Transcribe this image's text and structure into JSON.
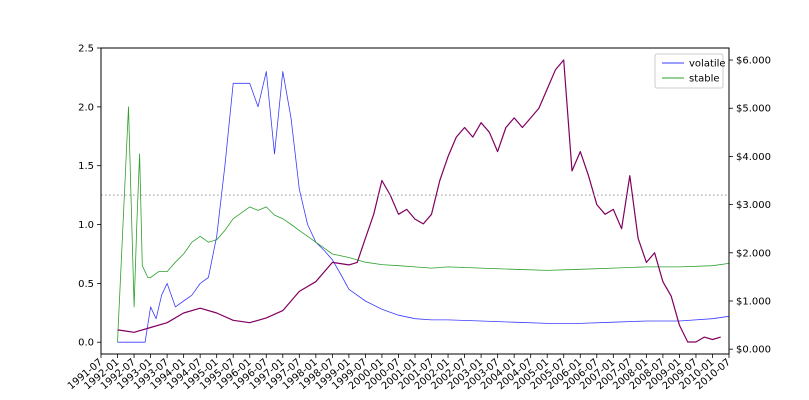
{
  "chart_data": {
    "type": "line",
    "title": "",
    "xlabel": "",
    "ylabel": "",
    "ylabel_right": "",
    "xlim": [
      "1991-07",
      "2010-07"
    ],
    "ylim": [
      -0.1,
      2.5
    ],
    "ylim_right": [
      -0.1,
      6.25
    ],
    "x_ticks": [
      "1991-07",
      "1992-01",
      "1992-07",
      "1993-01",
      "1993-07",
      "1994-01",
      "1994-07",
      "1995-01",
      "1995-07",
      "1996-01",
      "1996-07",
      "1997-01",
      "1997-07",
      "1998-01",
      "1998-07",
      "1999-01",
      "1999-07",
      "2000-01",
      "2000-07",
      "2001-01",
      "2001-07",
      "2002-01",
      "2002-07",
      "2003-01",
      "2003-07",
      "2004-01",
      "2004-07",
      "2005-01",
      "2005-07",
      "2006-01",
      "2006-07",
      "2007-01",
      "2007-07",
      "2008-01",
      "2008-07",
      "2009-01",
      "2009-07",
      "2010-01",
      "2010-07"
    ],
    "y_ticks_left": [
      "0.0",
      "0.5",
      "1.0",
      "1.5",
      "2.0",
      "2.5"
    ],
    "y_ticks_right": [
      "$0.000",
      "$1.000",
      "$2.000",
      "$3.000",
      "$4.000",
      "$5.000",
      "$6.000"
    ],
    "y_ticks_left_values": [
      0,
      0.5,
      1.0,
      1.5,
      2.0,
      2.5
    ],
    "y_ticks_right_values": [
      0,
      1,
      2,
      3,
      4,
      5,
      6
    ],
    "reference_line": {
      "axis": "left",
      "y": 1.25,
      "style": "dotted",
      "color": "#999999"
    },
    "grid": false,
    "legend_position": "top-right",
    "series": [
      {
        "name": "volatile",
        "axis": "left",
        "color": "#3b3bff",
        "x": [
          "1992-01",
          "1992-07",
          "1992-09",
          "1992-10",
          "1992-11",
          "1993-01",
          "1993-03",
          "1993-05",
          "1993-07",
          "1993-10",
          "1994-01",
          "1994-04",
          "1994-07",
          "1994-10",
          "1995-01",
          "1995-04",
          "1995-07",
          "1995-10",
          "1996-01",
          "1996-04",
          "1996-07",
          "1996-10",
          "1997-01",
          "1997-04",
          "1997-07",
          "1997-10",
          "1998-01",
          "1998-04",
          "1998-07",
          "1998-10",
          "1999-01",
          "1999-07",
          "2000-01",
          "2000-07",
          "2001-01",
          "2001-07",
          "2002-01",
          "2003-01",
          "2004-01",
          "2005-01",
          "2006-01",
          "2007-01",
          "2008-01",
          "2009-01",
          "2010-01",
          "2010-07"
        ],
        "values": [
          0.0,
          0.0,
          0.0,
          0.0,
          0.0,
          0.3,
          0.2,
          0.4,
          0.5,
          0.3,
          0.35,
          0.4,
          0.5,
          0.55,
          0.9,
          1.5,
          2.2,
          2.2,
          2.2,
          2.0,
          2.3,
          1.6,
          2.3,
          1.9,
          1.3,
          1.0,
          0.85,
          0.78,
          0.7,
          0.58,
          0.45,
          0.35,
          0.28,
          0.23,
          0.2,
          0.19,
          0.19,
          0.18,
          0.17,
          0.16,
          0.16,
          0.17,
          0.18,
          0.18,
          0.2,
          0.22
        ]
      },
      {
        "name": "stable",
        "axis": "left",
        "color": "#2ca02c",
        "x": [
          "1992-01",
          "1992-03",
          "1992-05",
          "1992-07",
          "1992-08",
          "1992-09",
          "1992-10",
          "1992-11",
          "1992-12",
          "1993-01",
          "1993-04",
          "1993-07",
          "1993-10",
          "1994-01",
          "1994-04",
          "1994-07",
          "1994-10",
          "1995-01",
          "1995-04",
          "1995-07",
          "1995-10",
          "1996-01",
          "1996-04",
          "1996-07",
          "1996-10",
          "1997-01",
          "1997-04",
          "1997-07",
          "1997-10",
          "1998-01",
          "1998-04",
          "1998-07",
          "1999-01",
          "1999-07",
          "2000-01",
          "2000-07",
          "2001-01",
          "2001-07",
          "2002-01",
          "2003-01",
          "2004-01",
          "2005-01",
          "2006-01",
          "2007-01",
          "2008-01",
          "2009-01",
          "2010-01",
          "2010-07"
        ],
        "values": [
          0.0,
          1.0,
          2.0,
          0.3,
          1.0,
          1.6,
          0.65,
          0.6,
          0.55,
          0.55,
          0.6,
          0.6,
          0.68,
          0.75,
          0.85,
          0.9,
          0.85,
          0.87,
          0.95,
          1.05,
          1.1,
          1.15,
          1.12,
          1.15,
          1.08,
          1.05,
          1.0,
          0.95,
          0.9,
          0.85,
          0.8,
          0.75,
          0.72,
          0.68,
          0.66,
          0.65,
          0.64,
          0.63,
          0.64,
          0.63,
          0.62,
          0.61,
          0.62,
          0.63,
          0.64,
          0.64,
          0.65,
          0.67
        ]
      },
      {
        "name": "",
        "axis": "right",
        "color": "#800060",
        "x": [
          "1992-01",
          "1992-07",
          "1993-01",
          "1993-07",
          "1994-01",
          "1994-07",
          "1995-01",
          "1995-07",
          "1996-01",
          "1996-07",
          "1997-01",
          "1997-07",
          "1998-01",
          "1998-07",
          "1999-01",
          "1999-04",
          "1999-07",
          "1999-10",
          "2000-01",
          "2000-04",
          "2000-07",
          "2000-10",
          "2001-01",
          "2001-04",
          "2001-07",
          "2001-10",
          "2002-01",
          "2002-04",
          "2002-07",
          "2002-10",
          "2003-01",
          "2003-04",
          "2003-07",
          "2003-10",
          "2004-01",
          "2004-04",
          "2004-07",
          "2004-10",
          "2005-01",
          "2005-04",
          "2005-07",
          "2005-10",
          "2006-01",
          "2006-04",
          "2006-07",
          "2006-10",
          "2007-01",
          "2007-04",
          "2007-07",
          "2007-10",
          "2008-01",
          "2008-04",
          "2008-07",
          "2008-10",
          "2009-01",
          "2009-04",
          "2009-07",
          "2009-10",
          "2010-01",
          "2010-04"
        ],
        "values": [
          0.4,
          0.35,
          0.45,
          0.55,
          0.75,
          0.85,
          0.75,
          0.6,
          0.55,
          0.65,
          0.8,
          1.2,
          1.4,
          1.8,
          1.75,
          1.8,
          2.3,
          2.8,
          3.5,
          3.2,
          2.8,
          2.9,
          2.7,
          2.6,
          2.8,
          3.5,
          4.0,
          4.4,
          4.6,
          4.4,
          4.7,
          4.5,
          4.1,
          4.6,
          4.8,
          4.6,
          4.8,
          5.0,
          5.4,
          5.8,
          6.0,
          3.7,
          4.1,
          3.6,
          3.0,
          2.8,
          2.9,
          2.5,
          3.6,
          2.3,
          1.8,
          2.0,
          1.4,
          1.1,
          0.5,
          0.15,
          0.15,
          0.25,
          0.2,
          0.25
        ]
      }
    ]
  }
}
